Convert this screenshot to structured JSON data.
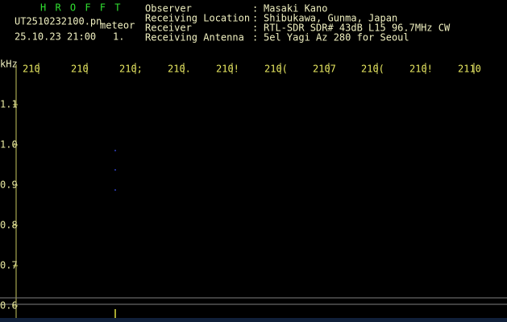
{
  "header": {
    "app": "H R O F F T",
    "file": "UT2510232100.pn",
    "mode": "meteor",
    "datetime": "25.10.23 21:00",
    "count": "1.",
    "fields": [
      {
        "label": "Observer",
        "sep": ":",
        "value": "Masaki Kano"
      },
      {
        "label": "Receiving Location",
        "sep": ":",
        "value": "Shibukawa, Gunma, Japan"
      },
      {
        "label": "Receiver",
        "sep": ":",
        "value": "RTL-SDR SDR# 43dB L15 96.7MHz CW"
      },
      {
        "label": "Receiving Antenna",
        "sep": ":",
        "value": "5el Yagi Az 280 for Seoul"
      }
    ]
  },
  "plot": {
    "y_unit": "kHz",
    "x_labels": [
      "210",
      "210",
      "210;",
      "210.",
      "210!",
      "210(",
      "2107",
      "210(",
      "210!",
      "2110"
    ],
    "y_labels": [
      "1.1",
      "1.0",
      "0.9",
      "0.8",
      "0.7",
      "0.6"
    ]
  }
}
